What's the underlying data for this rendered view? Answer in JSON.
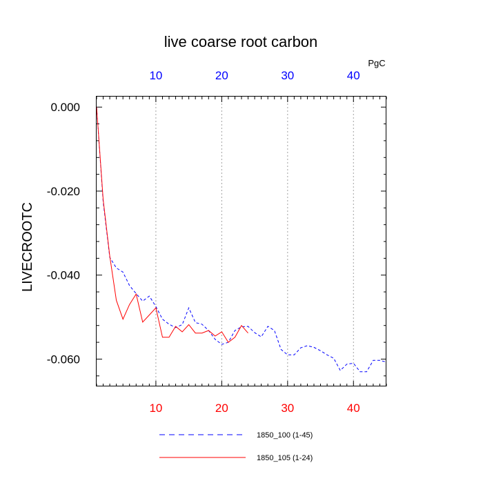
{
  "chart_data": {
    "type": "line",
    "title": "live coarse root carbon",
    "ylabel": "LIVECROOTC",
    "unit_label": "PgC",
    "xlim": [
      1,
      45
    ],
    "ylim": [
      -0.0665,
      0.0025
    ],
    "grid": "vertical dotted",
    "x_ticks": [
      10,
      20,
      30,
      40
    ],
    "x_tick_labels": [
      "10",
      "20",
      "30",
      "40"
    ],
    "y_ticks": [
      0.0,
      -0.02,
      -0.04,
      -0.06
    ],
    "y_tick_labels": [
      "0.000",
      "-0.020",
      "-0.040",
      "-0.060"
    ],
    "colors": {
      "top_tick_labels": "#0000ff",
      "bottom_tick_labels": "#ff0000"
    },
    "legend": {
      "placement": "bottom-center"
    },
    "series": [
      {
        "name": "1850_100 (1-45)",
        "color": "#0000ff",
        "style": "dashed",
        "x": [
          1,
          2,
          3,
          4,
          5,
          6,
          7,
          8,
          9,
          10,
          11,
          12,
          13,
          14,
          15,
          16,
          17,
          18,
          19,
          20,
          21,
          22,
          23,
          24,
          25,
          26,
          27,
          28,
          29,
          30,
          31,
          32,
          33,
          34,
          35,
          36,
          37,
          38,
          39,
          40,
          41,
          42,
          43,
          44,
          45
        ],
        "y": [
          0.0,
          -0.0225,
          -0.0358,
          -0.0383,
          -0.0393,
          -0.0425,
          -0.0444,
          -0.0462,
          -0.045,
          -0.0475,
          -0.0505,
          -0.0517,
          -0.0525,
          -0.0518,
          -0.0478,
          -0.0513,
          -0.0517,
          -0.0532,
          -0.0553,
          -0.0565,
          -0.056,
          -0.0532,
          -0.0523,
          -0.0522,
          -0.0537,
          -0.0547,
          -0.0522,
          -0.0532,
          -0.0577,
          -0.059,
          -0.059,
          -0.0573,
          -0.0568,
          -0.0572,
          -0.058,
          -0.059,
          -0.0598,
          -0.0627,
          -0.0612,
          -0.061,
          -0.063,
          -0.063,
          -0.0603,
          -0.0603,
          -0.0607
        ]
      },
      {
        "name": "1850_105 (1-24)",
        "color": "#ff0000",
        "style": "solid",
        "x": [
          1,
          2,
          3,
          4,
          5,
          6,
          7,
          8,
          9,
          10,
          11,
          12,
          13,
          14,
          15,
          16,
          17,
          18,
          19,
          20,
          21,
          22,
          23,
          24
        ],
        "y": [
          0.0,
          -0.022,
          -0.0355,
          -0.046,
          -0.0505,
          -0.047,
          -0.0445,
          -0.0512,
          -0.0495,
          -0.0478,
          -0.0548,
          -0.0548,
          -0.0522,
          -0.0535,
          -0.0518,
          -0.0538,
          -0.0538,
          -0.0532,
          -0.0545,
          -0.0535,
          -0.056,
          -0.0548,
          -0.052,
          -0.0538
        ]
      }
    ]
  }
}
